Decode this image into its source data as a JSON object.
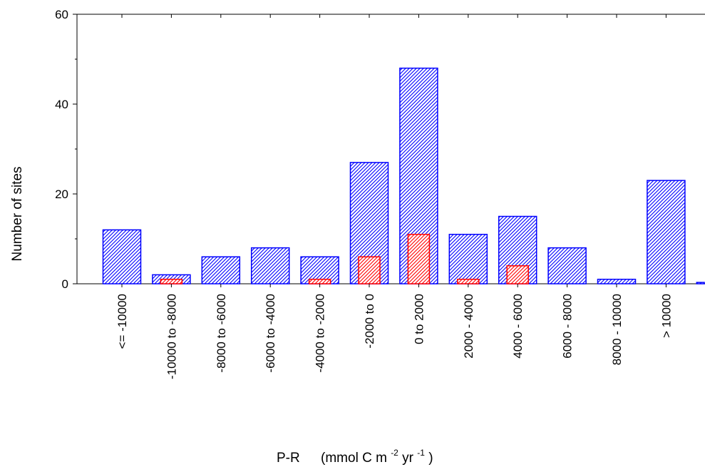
{
  "chart_data": {
    "type": "bar",
    "title": "",
    "xlabel": {
      "main": "P-R",
      "unit_open": "(mmol C m",
      "exp1": "-2",
      "mid": " yr",
      "exp2": "-1",
      "close": ")"
    },
    "ylabel": "Number of sites",
    "ylim": [
      0,
      60
    ],
    "yticks": [
      0,
      20,
      40,
      60
    ],
    "categories": [
      "<= -10000",
      "-10000 to -8000",
      "-8000 to -6000",
      "-6000 to -4000",
      "-4000 to -2000",
      "-2000 to 0",
      "0 to 2000",
      "2000 - 4000",
      "4000 - 6000",
      "6000 - 8000",
      "8000 - 10000",
      "> 10000",
      ""
    ],
    "series": [
      {
        "color": "#0000ff",
        "hatch": "diagonal",
        "values": [
          12,
          2,
          6,
          8,
          6,
          27,
          48,
          11,
          15,
          8,
          1,
          23,
          0.3
        ]
      },
      {
        "color": "#ff0000",
        "hatch": "diagonal",
        "values": [
          0,
          1,
          0,
          0,
          1,
          6,
          11,
          1,
          4,
          0,
          0,
          0,
          0
        ]
      }
    ],
    "grid": false,
    "legend": "none"
  }
}
